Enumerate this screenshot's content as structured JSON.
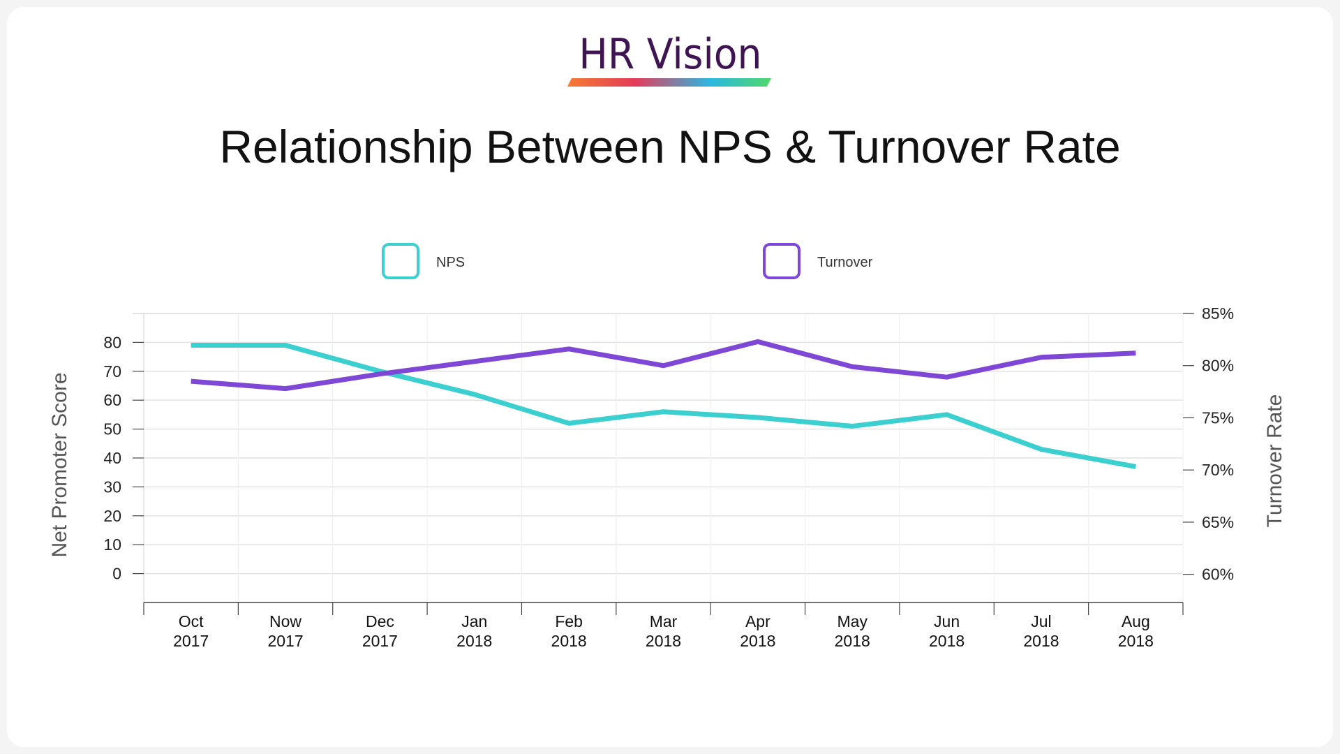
{
  "brand": {
    "name": "HR Vision",
    "colors": [
      "#f57c32",
      "#e63b5a",
      "#2bb7e0",
      "#4fd86b"
    ]
  },
  "chart_data": {
    "type": "line",
    "title": "Relationship Between NPS & Turnover Rate",
    "categories": [
      [
        "Oct",
        "2017"
      ],
      [
        "Now",
        "2017"
      ],
      [
        "Dec",
        "2017"
      ],
      [
        "Jan",
        "2018"
      ],
      [
        "Feb",
        "2018"
      ],
      [
        "Mar",
        "2018"
      ],
      [
        "Apr",
        "2018"
      ],
      [
        "May",
        "2018"
      ],
      [
        "Jun",
        "2018"
      ],
      [
        "Jul",
        "2018"
      ],
      [
        "Aug",
        "2018"
      ]
    ],
    "ylabel_left": "Net Promoter Score",
    "ylabel_right": "Turnover Rate",
    "ylim_left": [
      -10,
      90
    ],
    "yticks_left": [
      "0",
      "10",
      "20",
      "30",
      "40",
      "50",
      "60",
      "70",
      "80"
    ],
    "ylim_right": [
      57.3,
      85
    ],
    "yticks_right": [
      "60%",
      "65%",
      "70%",
      "75%",
      "80%",
      "85%"
    ],
    "grid": true,
    "legend_position": "top",
    "series": [
      {
        "name": "NPS",
        "axis": "left",
        "color": "#3ccfcf",
        "values": [
          79,
          79,
          70,
          62,
          52,
          56,
          54,
          51,
          55,
          43,
          37
        ]
      },
      {
        "name": "Turnover",
        "axis": "right",
        "color": "#7f47d6",
        "values": [
          78.5,
          77.8,
          79.2,
          80.4,
          81.6,
          80.0,
          82.3,
          79.9,
          78.9,
          80.8,
          81.2
        ]
      }
    ]
  }
}
